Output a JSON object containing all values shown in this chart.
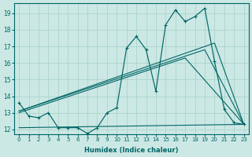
{
  "xlabel": "Humidex (Indice chaleur)",
  "xlim": [
    -0.5,
    23.5
  ],
  "ylim": [
    11.7,
    19.6
  ],
  "xticks": [
    0,
    1,
    2,
    3,
    4,
    5,
    6,
    7,
    8,
    9,
    10,
    11,
    12,
    13,
    14,
    15,
    16,
    17,
    18,
    19,
    20,
    21,
    22,
    23
  ],
  "yticks": [
    12,
    13,
    14,
    15,
    16,
    17,
    18,
    19
  ],
  "bg_color": "#cce8e4",
  "line_color": "#006666",
  "grid_color": "#aad4cc",
  "main_line_x": [
    0,
    1,
    2,
    3,
    4,
    5,
    6,
    7,
    8,
    9,
    10,
    11,
    12,
    13,
    14,
    15,
    16,
    17,
    18,
    19,
    20,
    21,
    22,
    23
  ],
  "main_line_y": [
    13.6,
    12.8,
    12.7,
    13.0,
    12.1,
    12.1,
    12.1,
    11.75,
    12.1,
    13.0,
    13.3,
    16.9,
    17.6,
    16.8,
    14.3,
    18.3,
    19.2,
    18.5,
    18.8,
    19.3,
    16.1,
    13.2,
    12.4,
    12.3
  ],
  "flat_line_x": [
    0,
    23
  ],
  "flat_line_y": [
    12.1,
    12.3
  ],
  "trend1_x": [
    0,
    20,
    23
  ],
  "trend1_y": [
    13.1,
    17.2,
    12.3
  ],
  "trend2_x": [
    0,
    19,
    23
  ],
  "trend2_y": [
    13.1,
    16.8,
    12.3
  ],
  "trend3_x": [
    0,
    17,
    23
  ],
  "trend3_y": [
    13.0,
    16.3,
    12.3
  ]
}
